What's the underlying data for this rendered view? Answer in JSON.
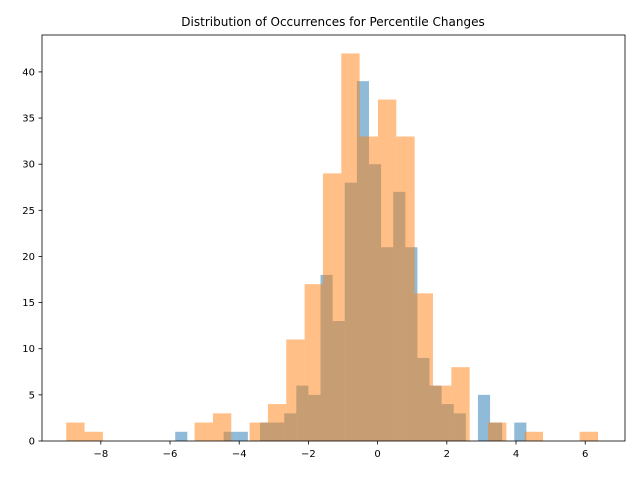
{
  "chart_data": {
    "type": "bar",
    "title": "Distribution of Occurrences for Percentile Changes",
    "xlabel": "",
    "ylabel": "",
    "xlim": [
      -9.7,
      7.15
    ],
    "ylim": [
      0,
      44
    ],
    "xticks": [
      -8,
      -6,
      -4,
      -2,
      0,
      2,
      4,
      6
    ],
    "xtick_labels": [
      "−8",
      "−6",
      "−4",
      "−2",
      "0",
      "2",
      "4",
      "6"
    ],
    "yticks": [
      0,
      5,
      10,
      15,
      20,
      25,
      30,
      35,
      40
    ],
    "grid": false,
    "legend": "none",
    "series": [
      {
        "color": "#1f77b4",
        "opacity": 0.5,
        "bin_edges": [
          -5.85,
          -5.5,
          -5.15,
          -4.8,
          -4.45,
          -4.1,
          -3.75,
          -3.4,
          -3.05,
          -2.7,
          -2.35,
          -2.0,
          -1.65,
          -1.3,
          -0.95,
          -0.6,
          -0.25,
          0.1,
          0.45,
          0.8,
          1.15,
          1.5,
          1.85,
          2.2,
          2.55,
          2.9,
          3.25,
          3.6,
          3.95,
          4.3
        ],
        "counts": [
          1,
          0,
          0,
          0,
          1,
          1,
          0,
          2,
          2,
          3,
          6,
          5,
          18,
          13,
          28,
          39,
          30,
          21,
          27,
          21,
          9,
          6,
          4,
          3,
          0,
          5,
          2,
          0,
          2
        ]
      },
      {
        "color": "#ff7f0e",
        "opacity": 0.5,
        "bin_edges": [
          -9.0,
          -8.47,
          -7.94,
          -7.41,
          -6.88,
          -6.35,
          -5.82,
          -5.29,
          -4.76,
          -4.23,
          -3.7,
          -3.17,
          -2.64,
          -2.11,
          -1.58,
          -1.05,
          -0.52,
          0.01,
          0.54,
          1.07,
          1.6,
          2.13,
          2.66,
          3.19,
          3.72,
          4.25,
          4.78,
          5.31,
          5.84,
          6.37
        ],
        "counts": [
          2,
          1,
          0,
          0,
          0,
          0,
          0,
          2,
          3,
          0,
          2,
          4,
          11,
          17,
          29,
          42,
          33,
          37,
          33,
          16,
          6,
          8,
          0,
          2,
          0,
          1,
          0,
          0,
          1
        ]
      }
    ]
  }
}
